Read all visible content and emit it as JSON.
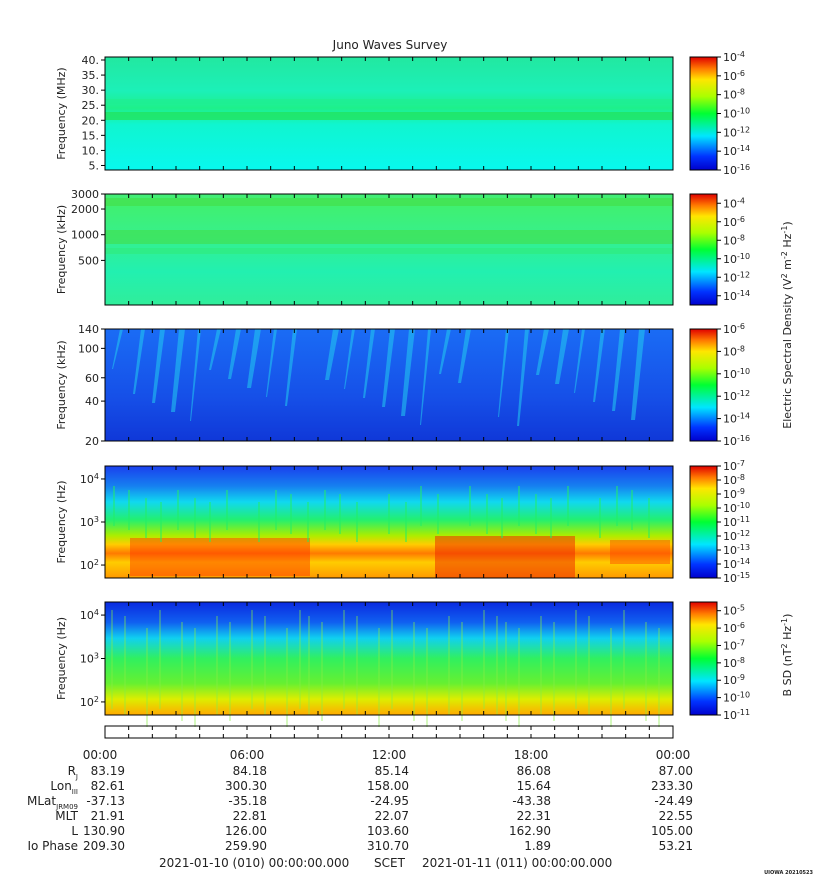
{
  "chart_data": {
    "type": "heatmap",
    "title": "Juno Waves Survey",
    "panels": [
      {
        "ylabel": "Frequency (MHz)",
        "scale": "linear",
        "ylim": [
          3.5,
          41
        ],
        "yticks": [
          5,
          10,
          15,
          20,
          25,
          30,
          35,
          40
        ],
        "yticklabels": [
          "5.",
          "10.",
          "15.",
          "20.",
          "25.",
          "30.",
          "35.",
          "40."
        ],
        "colorbar": {
          "min_exp": -16,
          "max_exp": -4,
          "labels": [
            -4,
            -6,
            -8,
            -10,
            -12,
            -14,
            -16
          ]
        }
      },
      {
        "ylabel": "Frequency (kHz)",
        "scale": "log",
        "ylim": [
          150,
          3000
        ],
        "yticks": [
          500,
          1000,
          2000,
          3000
        ],
        "yticklabels": [
          "500",
          "1000",
          "2000",
          "3000"
        ],
        "colorbar": {
          "min_exp": -15,
          "max_exp": -3,
          "labels": [
            -4,
            -6,
            -8,
            -10,
            -12,
            -14
          ]
        }
      },
      {
        "ylabel": "Frequency (kHz)",
        "scale": "log",
        "ylim": [
          20,
          140
        ],
        "yticks": [
          20,
          40,
          60,
          100,
          140
        ],
        "yticklabels": [
          "20",
          "40",
          "60",
          "100",
          "140"
        ],
        "colorbar": {
          "min_exp": -16,
          "max_exp": -6,
          "labels": [
            -6,
            -8,
            -10,
            -12,
            -14,
            -16
          ]
        }
      },
      {
        "ylabel": "Frequency (Hz)",
        "scale": "log",
        "ylim": [
          50,
          20000
        ],
        "yticks": [
          100,
          1000,
          10000
        ],
        "yticklabels": [
          "10",
          "10",
          "10"
        ],
        "ytickexp": [
          "2",
          "3",
          "4"
        ],
        "colorbar": {
          "min_exp": -15,
          "max_exp": -7,
          "labels": [
            -7,
            -8,
            -9,
            -10,
            -11,
            -12,
            -13,
            -14,
            -15
          ]
        }
      },
      {
        "ylabel": "Frequency (Hz)",
        "scale": "log",
        "ylim": [
          50,
          20000
        ],
        "yticks": [
          100,
          1000,
          10000
        ],
        "yticklabels": [
          "10",
          "10",
          "10"
        ],
        "ytickexp": [
          "2",
          "3",
          "4"
        ],
        "colorbar": {
          "min_exp": -11,
          "max_exp": -4.5,
          "labels": [
            -5,
            -6,
            -7,
            -8,
            -9,
            -10,
            -11
          ]
        }
      }
    ],
    "colorbar_labels": {
      "mantissa": "10",
      "electric": "Electric Spectral Density (V",
      "electric_sup1": "2",
      "electric_mid": " m",
      "electric_sup2": "-2",
      "electric_mid2": " Hz",
      "electric_sup3": "-1",
      "electric_end": ")",
      "magnetic": "B SD (nT",
      "magnetic_sup1": "2",
      "magnetic_mid": " Hz",
      "magnetic_sup2": "-1",
      "magnetic_end": ")"
    },
    "x": [
      "00:00",
      "06:00",
      "12:00",
      "18:00",
      "00:00"
    ],
    "ephemeris": [
      {
        "name": "R",
        "sub": "J",
        "values": [
          "83.19",
          "84.18",
          "85.14",
          "86.08",
          "87.00"
        ]
      },
      {
        "name": "Lon",
        "sub": "III",
        "values": [
          "82.61",
          "300.30",
          "158.00",
          "15.64",
          "233.30"
        ]
      },
      {
        "name": "MLat",
        "sub": "JRM09",
        "values": [
          "-37.13",
          "-35.18",
          "-24.95",
          "-43.38",
          "-24.49"
        ]
      },
      {
        "name": "MLT",
        "sub": "",
        "values": [
          "21.91",
          "22.81",
          "22.07",
          "22.31",
          "22.55"
        ]
      },
      {
        "name": "L",
        "sub": "",
        "values": [
          "130.90",
          "126.00",
          "103.60",
          "162.90",
          "105.00"
        ]
      },
      {
        "name": "Io Phase",
        "sub": "",
        "values": [
          "209.30",
          "259.90",
          "310.70",
          "1.89",
          "53.21"
        ]
      }
    ],
    "footer": {
      "start": "2021-01-10 (010) 00:00:00.000",
      "scet": "SCET",
      "end": "2021-01-11 (011) 00:00:00.000"
    },
    "stamp": "UIOWA 20210523"
  }
}
